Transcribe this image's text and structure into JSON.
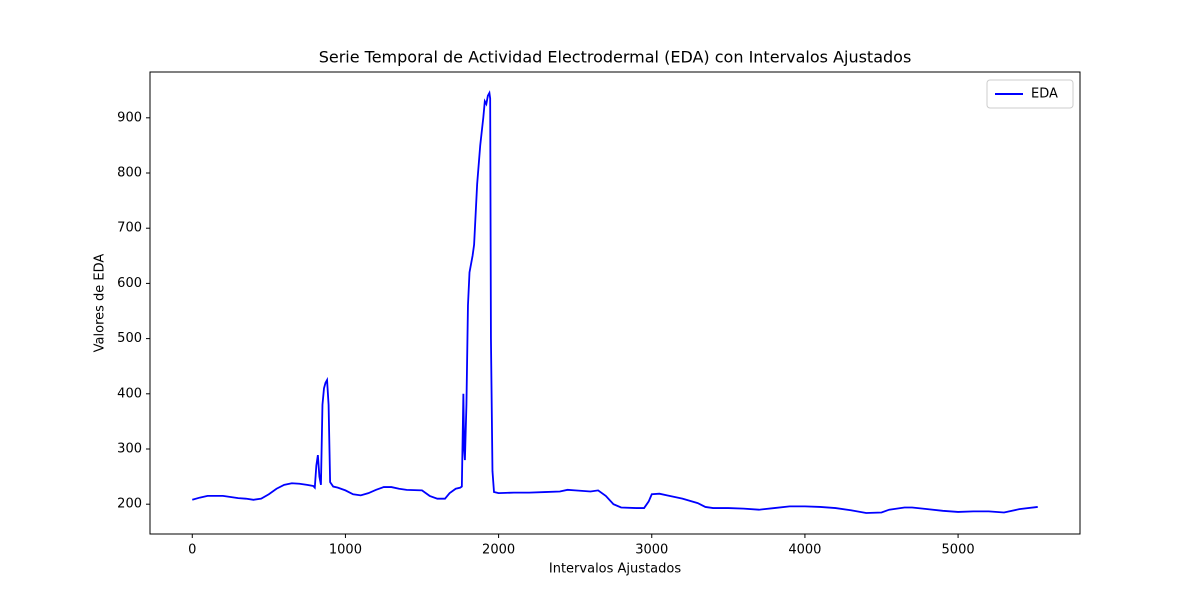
{
  "chart_data": {
    "type": "line",
    "title": "Serie Temporal de Actividad Electrodermal (EDA) con Intervalos Ajustados",
    "xlabel": "Intervalos Ajustados",
    "ylabel": "Valores de EDA",
    "x": [
      0,
      50,
      100,
      200,
      300,
      350,
      400,
      450,
      500,
      550,
      600,
      650,
      700,
      750,
      790,
      800,
      810,
      820,
      830,
      840,
      850,
      860,
      870,
      880,
      890,
      900,
      920,
      950,
      1000,
      1050,
      1100,
      1150,
      1200,
      1250,
      1300,
      1350,
      1400,
      1500,
      1550,
      1600,
      1650,
      1680,
      1720,
      1750,
      1760,
      1770,
      1775,
      1780,
      1790,
      1800,
      1810,
      1830,
      1840,
      1860,
      1880,
      1900,
      1910,
      1920,
      1930,
      1940,
      1945,
      1950,
      1960,
      1970,
      2000,
      2100,
      2200,
      2300,
      2400,
      2450,
      2500,
      2600,
      2650,
      2700,
      2750,
      2800,
      2900,
      2950,
      2980,
      3000,
      3050,
      3100,
      3200,
      3300,
      3350,
      3400,
      3500,
      3600,
      3700,
      3800,
      3900,
      4000,
      4100,
      4200,
      4300,
      4400,
      4500,
      4550,
      4650,
      4700,
      4800,
      4900,
      5000,
      5100,
      5200,
      5300,
      5400,
      5520
    ],
    "series": [
      {
        "name": "EDA",
        "color": "#0000ff",
        "values": [
          208,
          212,
          215,
          215,
          211,
          210,
          208,
          210,
          218,
          228,
          235,
          238,
          237,
          235,
          233,
          230,
          270,
          289,
          250,
          235,
          380,
          410,
          420,
          425,
          380,
          240,
          232,
          230,
          225,
          218,
          216,
          220,
          226,
          231,
          231,
          228,
          226,
          225,
          215,
          210,
          210,
          220,
          228,
          230,
          232,
          400,
          300,
          280,
          380,
          560,
          620,
          650,
          670,
          780,
          850,
          900,
          930,
          925,
          940,
          945,
          935,
          500,
          260,
          222,
          220,
          221,
          221,
          222,
          223,
          226,
          225,
          223,
          225,
          215,
          200,
          194,
          193,
          193,
          205,
          218,
          219,
          216,
          210,
          202,
          195,
          193,
          193,
          192,
          190,
          193,
          196,
          196,
          195,
          193,
          189,
          184,
          185,
          190,
          194,
          194,
          191,
          188,
          186,
          187,
          187,
          185,
          191,
          195
        ]
      }
    ],
    "xlim": [
      -276,
      5796
    ],
    "xticks": [
      0,
      1000,
      2000,
      3000,
      4000,
      5000
    ],
    "ylim": [
      146,
      983
    ],
    "yticks": [
      200,
      300,
      400,
      500,
      600,
      700,
      800,
      900
    ],
    "legend": "upper right",
    "grid": false
  }
}
